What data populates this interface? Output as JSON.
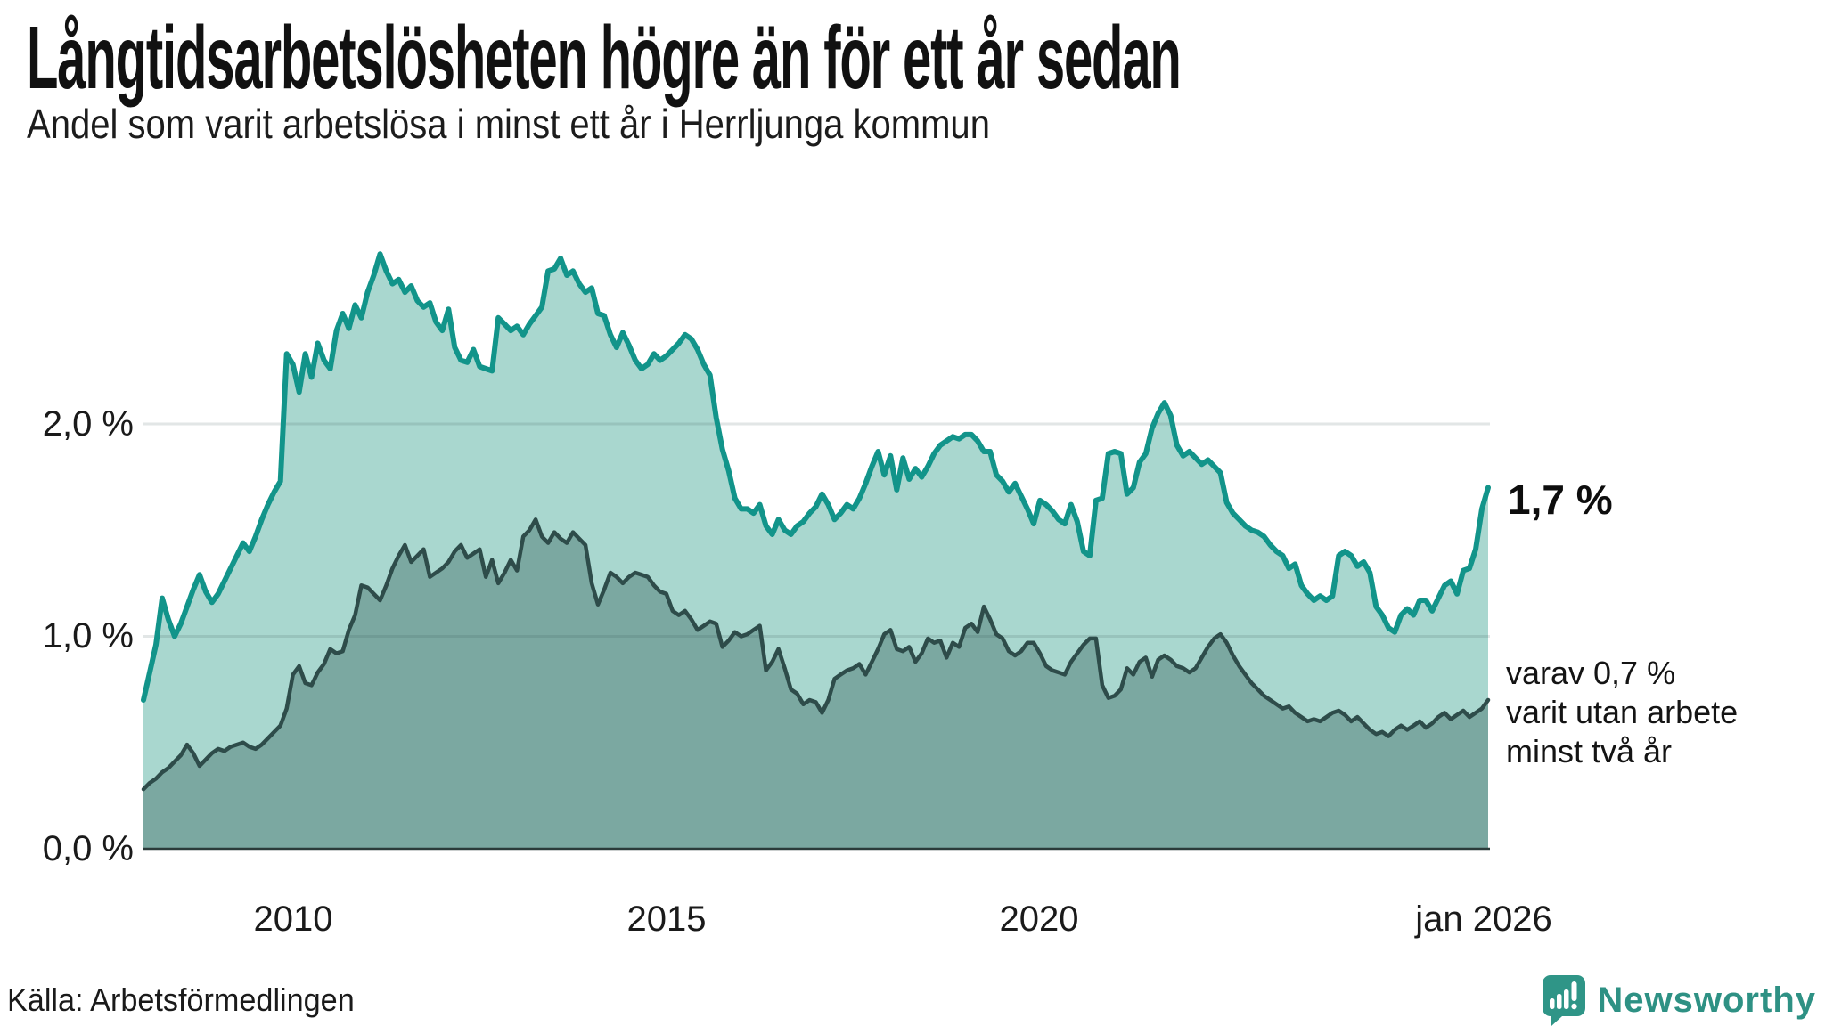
{
  "header": {
    "title": "Långtidsarbetslösheten högre än för ett år sedan",
    "subtitle": "Andel som varit arbetslösa i minst ett år i Herrljunga kommun"
  },
  "footer": {
    "source": "Källa: Arbetsförmedlingen",
    "logo_text": "Newsworthy",
    "logo_color": "#2f9587"
  },
  "chart_data": {
    "type": "area",
    "title": "Långtidsarbetslösheten högre än för ett år sedan",
    "subtitle": "Andel som varit arbetslösa i minst ett år i Herrljunga kommun",
    "x_start": "2008-01",
    "x_end": "2026-01",
    "frequency": "monthly",
    "xlabel": "",
    "ylabel": "",
    "ylim": [
      0,
      3.2
    ],
    "grid": "horizontal",
    "y_ticks": [
      {
        "label": "0,0 %",
        "value": 0.0
      },
      {
        "label": "1,0 %",
        "value": 1.0
      },
      {
        "label": "2,0 %",
        "value": 2.0
      }
    ],
    "x_ticks": [
      {
        "label": "2010",
        "value": "2010-01"
      },
      {
        "label": "2015",
        "value": "2015-01"
      },
      {
        "label": "2020",
        "value": "2020-01"
      },
      {
        "label": "jan 2026",
        "value": "2026-01"
      }
    ],
    "annotations": {
      "last_total_label": "1,7 %",
      "sub_lines": [
        "varav 0,7 %",
        "varit utan arbete",
        "minst två år"
      ]
    },
    "colors": {
      "total_line": "#12948a",
      "total_fill": "#a9d7cf",
      "sub_line": "#2e4c4a",
      "sub_fill": "#7ba8a1",
      "gridline": "#e0e4e4",
      "baseline": "#2b3b3a"
    },
    "series": [
      {
        "name": "Andel arbetslösa minst ett år",
        "last_value": 1.7,
        "values": [
          0.7,
          0.83,
          0.96,
          1.18,
          1.08,
          1.0,
          1.06,
          1.14,
          1.22,
          1.29,
          1.21,
          1.16,
          1.2,
          1.26,
          1.32,
          1.38,
          1.44,
          1.4,
          1.47,
          1.55,
          1.62,
          1.68,
          1.73,
          2.33,
          2.28,
          2.15,
          2.33,
          2.22,
          2.38,
          2.3,
          2.26,
          2.44,
          2.52,
          2.45,
          2.56,
          2.5,
          2.62,
          2.7,
          2.8,
          2.72,
          2.66,
          2.68,
          2.62,
          2.65,
          2.58,
          2.55,
          2.57,
          2.48,
          2.44,
          2.54,
          2.36,
          2.3,
          2.29,
          2.35,
          2.27,
          2.26,
          2.25,
          2.5,
          2.47,
          2.44,
          2.46,
          2.42,
          2.47,
          2.51,
          2.55,
          2.72,
          2.73,
          2.78,
          2.7,
          2.72,
          2.66,
          2.62,
          2.64,
          2.52,
          2.51,
          2.42,
          2.36,
          2.43,
          2.37,
          2.3,
          2.26,
          2.28,
          2.33,
          2.3,
          2.32,
          2.35,
          2.38,
          2.42,
          2.4,
          2.35,
          2.28,
          2.23,
          2.03,
          1.88,
          1.78,
          1.65,
          1.6,
          1.6,
          1.58,
          1.62,
          1.52,
          1.48,
          1.55,
          1.5,
          1.48,
          1.52,
          1.54,
          1.58,
          1.61,
          1.67,
          1.62,
          1.55,
          1.58,
          1.62,
          1.6,
          1.65,
          1.72,
          1.8,
          1.87,
          1.76,
          1.85,
          1.69,
          1.84,
          1.74,
          1.79,
          1.75,
          1.8,
          1.86,
          1.9,
          1.92,
          1.94,
          1.93,
          1.95,
          1.95,
          1.92,
          1.87,
          1.87,
          1.76,
          1.73,
          1.68,
          1.72,
          1.66,
          1.6,
          1.53,
          1.64,
          1.62,
          1.59,
          1.55,
          1.53,
          1.62,
          1.54,
          1.4,
          1.38,
          1.64,
          1.65,
          1.86,
          1.87,
          1.86,
          1.67,
          1.7,
          1.82,
          1.86,
          1.98,
          2.05,
          2.1,
          2.04,
          1.9,
          1.85,
          1.87,
          1.84,
          1.81,
          1.83,
          1.8,
          1.77,
          1.63,
          1.58,
          1.55,
          1.52,
          1.5,
          1.49,
          1.47,
          1.43,
          1.4,
          1.38,
          1.32,
          1.34,
          1.24,
          1.2,
          1.17,
          1.19,
          1.17,
          1.19,
          1.38,
          1.4,
          1.38,
          1.33,
          1.35,
          1.3,
          1.14,
          1.1,
          1.04,
          1.02,
          1.1,
          1.13,
          1.1,
          1.17,
          1.17,
          1.12,
          1.18,
          1.24,
          1.26,
          1.2,
          1.31,
          1.32,
          1.41,
          1.6,
          1.7
        ]
      },
      {
        "name": "varav utan arbete minst två år",
        "last_value": 0.7,
        "values": [
          0.28,
          0.31,
          0.33,
          0.36,
          0.38,
          0.41,
          0.44,
          0.49,
          0.45,
          0.39,
          0.42,
          0.45,
          0.47,
          0.46,
          0.48,
          0.49,
          0.5,
          0.48,
          0.47,
          0.49,
          0.52,
          0.55,
          0.58,
          0.66,
          0.82,
          0.86,
          0.78,
          0.77,
          0.83,
          0.87,
          0.94,
          0.92,
          0.93,
          1.03,
          1.1,
          1.24,
          1.23,
          1.2,
          1.17,
          1.24,
          1.32,
          1.38,
          1.43,
          1.35,
          1.38,
          1.41,
          1.28,
          1.3,
          1.32,
          1.35,
          1.4,
          1.43,
          1.37,
          1.39,
          1.41,
          1.28,
          1.36,
          1.25,
          1.3,
          1.36,
          1.31,
          1.47,
          1.5,
          1.55,
          1.47,
          1.44,
          1.49,
          1.46,
          1.44,
          1.49,
          1.46,
          1.43,
          1.25,
          1.15,
          1.22,
          1.3,
          1.28,
          1.25,
          1.28,
          1.3,
          1.29,
          1.28,
          1.24,
          1.21,
          1.2,
          1.12,
          1.1,
          1.12,
          1.08,
          1.03,
          1.05,
          1.07,
          1.06,
          0.95,
          0.98,
          1.02,
          1.0,
          1.01,
          1.03,
          1.05,
          0.84,
          0.88,
          0.94,
          0.85,
          0.75,
          0.73,
          0.68,
          0.7,
          0.69,
          0.64,
          0.7,
          0.8,
          0.82,
          0.84,
          0.85,
          0.87,
          0.82,
          0.88,
          0.94,
          1.01,
          1.03,
          0.94,
          0.93,
          0.95,
          0.88,
          0.92,
          0.99,
          0.97,
          0.98,
          0.9,
          0.97,
          0.95,
          1.04,
          1.06,
          1.02,
          1.14,
          1.08,
          1.01,
          0.99,
          0.93,
          0.91,
          0.93,
          0.97,
          0.97,
          0.92,
          0.86,
          0.84,
          0.83,
          0.82,
          0.88,
          0.92,
          0.96,
          0.99,
          0.99,
          0.77,
          0.71,
          0.72,
          0.75,
          0.85,
          0.82,
          0.88,
          0.9,
          0.81,
          0.89,
          0.91,
          0.89,
          0.86,
          0.85,
          0.83,
          0.85,
          0.9,
          0.95,
          0.99,
          1.01,
          0.97,
          0.91,
          0.86,
          0.82,
          0.78,
          0.75,
          0.72,
          0.7,
          0.68,
          0.66,
          0.67,
          0.64,
          0.62,
          0.6,
          0.61,
          0.6,
          0.62,
          0.64,
          0.65,
          0.63,
          0.6,
          0.62,
          0.59,
          0.56,
          0.54,
          0.55,
          0.53,
          0.56,
          0.58,
          0.56,
          0.58,
          0.6,
          0.57,
          0.59,
          0.62,
          0.64,
          0.61,
          0.63,
          0.65,
          0.62,
          0.64,
          0.66,
          0.7
        ]
      }
    ]
  }
}
